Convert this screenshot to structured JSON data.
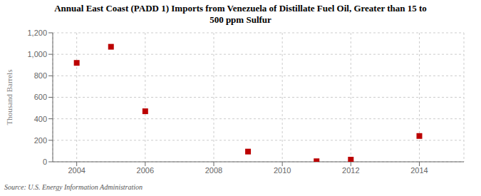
{
  "chart_data": {
    "type": "scatter",
    "title": "Annual East Coast (PADD 1) Imports from Venezuela of Distillate Fuel Oil, Greater than 15 to\n500 ppm Sulfur",
    "y_label": "Thousand Barrels",
    "annotations": [
      "Source: U.S. Energy Information Administration"
    ],
    "x": [
      2004,
      2005,
      2006,
      2009,
      2011,
      2012,
      2014
    ],
    "values": [
      920,
      1070,
      470,
      95,
      5,
      20,
      240
    ],
    "color": "#bb0000",
    "marker": "square",
    "xlim": [
      2003.3,
      2015.3
    ],
    "ylim": [
      0,
      1200
    ],
    "xticks": [
      2004,
      2006,
      2008,
      2010,
      2012,
      2014
    ],
    "yticks": [
      0,
      200,
      400,
      600,
      800,
      {
        "value": 1000,
        "label": "1,000"
      },
      {
        "value": 1200,
        "label": "1,200"
      }
    ],
    "grid": true
  }
}
